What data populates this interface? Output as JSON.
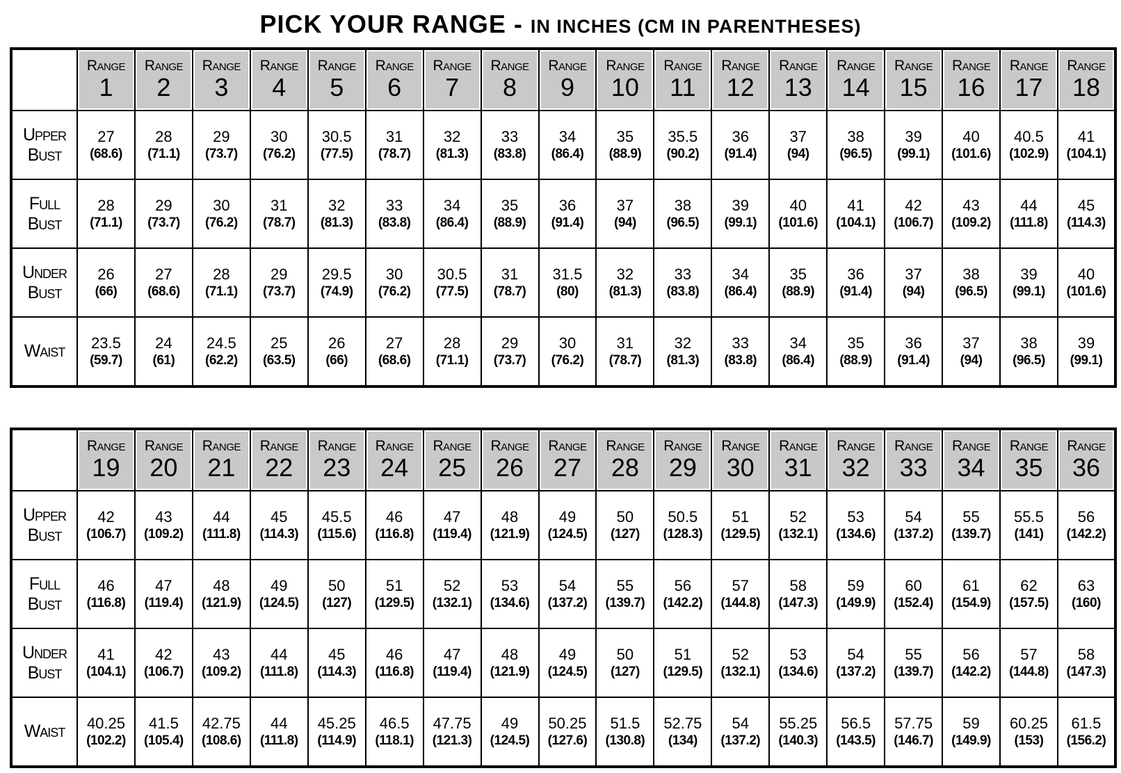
{
  "title": {
    "main": "PICK YOUR RANGE - ",
    "sub": "IN INCHES (CM IN PARENTHESES)"
  },
  "range_word": "Range",
  "row_labels": [
    [
      "Upper",
      "Bust"
    ],
    [
      "Full",
      "Bust"
    ],
    [
      "Under",
      "Bust"
    ],
    [
      "Waist"
    ]
  ],
  "tables": [
    {
      "ranges": [
        "1",
        "2",
        "3",
        "4",
        "5",
        "6",
        "7",
        "8",
        "9",
        "10",
        "11",
        "12",
        "13",
        "14",
        "15",
        "16",
        "17",
        "18"
      ],
      "rows": [
        {
          "in": [
            "27",
            "28",
            "29",
            "30",
            "30.5",
            "31",
            "32",
            "33",
            "34",
            "35",
            "35.5",
            "36",
            "37",
            "38",
            "39",
            "40",
            "40.5",
            "41"
          ],
          "cm": [
            "68.6",
            "71.1",
            "73.7",
            "76.2",
            "77.5",
            "78.7",
            "81.3",
            "83.8",
            "86.4",
            "88.9",
            "90.2",
            "91.4",
            "94",
            "96.5",
            "99.1",
            "101.6",
            "102.9",
            "104.1"
          ]
        },
        {
          "in": [
            "28",
            "29",
            "30",
            "31",
            "32",
            "33",
            "34",
            "35",
            "36",
            "37",
            "38",
            "39",
            "40",
            "41",
            "42",
            "43",
            "44",
            "45"
          ],
          "cm": [
            "71.1",
            "73.7",
            "76.2",
            "78.7",
            "81.3",
            "83.8",
            "86.4",
            "88.9",
            "91.4",
            "94",
            "96.5",
            "99.1",
            "101.6",
            "104.1",
            "106.7",
            "109.2",
            "111.8",
            "114.3"
          ]
        },
        {
          "in": [
            "26",
            "27",
            "28",
            "29",
            "29.5",
            "30",
            "30.5",
            "31",
            "31.5",
            "32",
            "33",
            "34",
            "35",
            "36",
            "37",
            "38",
            "39",
            "40"
          ],
          "cm": [
            "66",
            "68.6",
            "71.1",
            "73.7",
            "74.9",
            "76.2",
            "77.5",
            "78.7",
            "80",
            "81.3",
            "83.8",
            "86.4",
            "88.9",
            "91.4",
            "94",
            "96.5",
            "99.1",
            "101.6"
          ]
        },
        {
          "in": [
            "23.5",
            "24",
            "24.5",
            "25",
            "26",
            "27",
            "28",
            "29",
            "30",
            "31",
            "32",
            "33",
            "34",
            "35",
            "36",
            "37",
            "38",
            "39"
          ],
          "cm": [
            "59.7",
            "61",
            "62.2",
            "63.5",
            "66",
            "68.6",
            "71.1",
            "73.7",
            "76.2",
            "78.7",
            "81.3",
            "83.8",
            "86.4",
            "88.9",
            "91.4",
            "94",
            "96.5",
            "99.1"
          ]
        }
      ]
    },
    {
      "ranges": [
        "19",
        "20",
        "21",
        "22",
        "23",
        "24",
        "25",
        "26",
        "27",
        "28",
        "29",
        "30",
        "31",
        "32",
        "33",
        "34",
        "35",
        "36"
      ],
      "rows": [
        {
          "in": [
            "42",
            "43",
            "44",
            "45",
            "45.5",
            "46",
            "47",
            "48",
            "49",
            "50",
            "50.5",
            "51",
            "52",
            "53",
            "54",
            "55",
            "55.5",
            "56"
          ],
          "cm": [
            "106.7",
            "109.2",
            "111.8",
            "114.3",
            "115.6",
            "116.8",
            "119.4",
            "121.9",
            "124.5",
            "127",
            "128.3",
            "129.5",
            "132.1",
            "134.6",
            "137.2",
            "139.7",
            "141",
            "142.2"
          ]
        },
        {
          "in": [
            "46",
            "47",
            "48",
            "49",
            "50",
            "51",
            "52",
            "53",
            "54",
            "55",
            "56",
            "57",
            "58",
            "59",
            "60",
            "61",
            "62",
            "63"
          ],
          "cm": [
            "116.8",
            "119.4",
            "121.9",
            "124.5",
            "127",
            "129.5",
            "132.1",
            "134.6",
            "137.2",
            "139.7",
            "142.2",
            "144.8",
            "147.3",
            "149.9",
            "152.4",
            "154.9",
            "157.5",
            "160"
          ]
        },
        {
          "in": [
            "41",
            "42",
            "43",
            "44",
            "45",
            "46",
            "47",
            "48",
            "49",
            "50",
            "51",
            "52",
            "53",
            "54",
            "55",
            "56",
            "57",
            "58"
          ],
          "cm": [
            "104.1",
            "106.7",
            "109.2",
            "111.8",
            "114.3",
            "116.8",
            "119.4",
            "121.9",
            "124.5",
            "127",
            "129.5",
            "132.1",
            "134.6",
            "137.2",
            "139.7",
            "142.2",
            "144.8",
            "147.3"
          ]
        },
        {
          "in": [
            "40.25",
            "41.5",
            "42.75",
            "44",
            "45.25",
            "46.5",
            "47.75",
            "49",
            "50.25",
            "51.5",
            "52.75",
            "54",
            "55.25",
            "56.5",
            "57.75",
            "59",
            "60.25",
            "61.5"
          ],
          "cm": [
            "102.2",
            "105.4",
            "108.6",
            "111.8",
            "114.9",
            "118.1",
            "121.3",
            "124.5",
            "127.6",
            "130.8",
            "134",
            "137.2",
            "140.3",
            "143.5",
            "146.7",
            "149.9",
            "153",
            "156.2"
          ]
        }
      ]
    }
  ],
  "colors": {
    "header_fill": "#c9c9c9",
    "border": "#000000"
  }
}
